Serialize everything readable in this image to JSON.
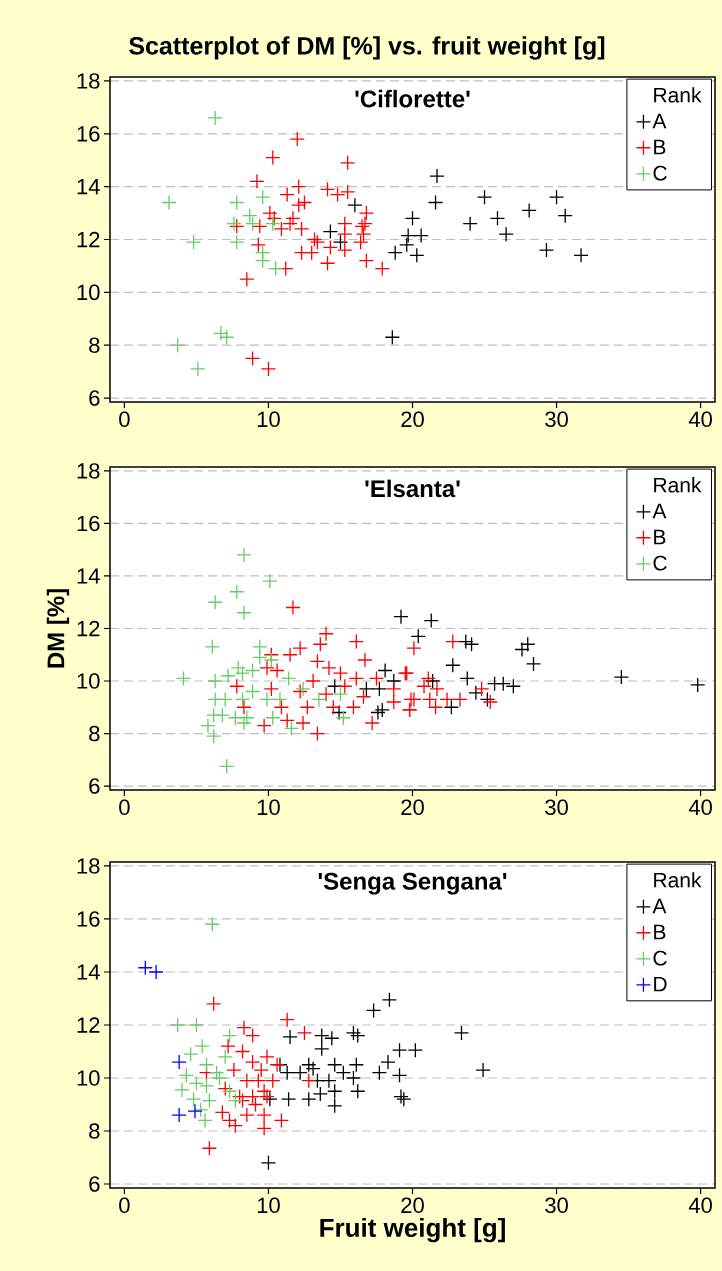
{
  "chart_data": [
    {
      "type": "scatter",
      "title": "Scatterplot of DM [%] vs. fruit weight [g]",
      "subtitle": "'Ciflorette'",
      "legend_title": "Rank",
      "xlim": [
        -1,
        41
      ],
      "xticks": [
        0,
        10,
        20,
        30,
        40
      ],
      "ylim": [
        5.85,
        18.15
      ],
      "yticks": [
        6,
        8,
        10,
        12,
        14,
        16,
        18
      ],
      "grid": "y",
      "legend": "top right",
      "marker": "cross",
      "series": [
        {
          "name": "A",
          "color": "#000000",
          "x": [
            21.7,
            21.6,
            20.0,
            19.7,
            20.6,
            19.6,
            20.3,
            24.0,
            25.0,
            25.9,
            26.5,
            28.1,
            30.0,
            30.6,
            29.3,
            31.7,
            16.0,
            14.3,
            15.0,
            18.8,
            18.6
          ],
          "values": [
            14.4,
            13.4,
            12.8,
            12.15,
            12.15,
            11.8,
            11.4,
            12.6,
            13.6,
            12.8,
            12.2,
            13.1,
            13.6,
            12.9,
            11.6,
            11.4,
            13.3,
            12.3,
            11.9,
            11.5,
            8.3
          ]
        },
        {
          "name": "B",
          "color": "#ff0000",
          "x": [
            12.0,
            10.3,
            15.5,
            9.2,
            12.1,
            14.1,
            14.8,
            15.5,
            11.3,
            12.5,
            12.1,
            10.1,
            10.4,
            11.7,
            11.5,
            16.8,
            16.7,
            16.5,
            15.3,
            16.6,
            7.8,
            9.4,
            10.9,
            12.3,
            15.3,
            13.2,
            13.4,
            16.4,
            14.3,
            15.3,
            12.3,
            13.0,
            9.3,
            14.1,
            16.8,
            17.9,
            11.2,
            8.5,
            8.9,
            10.0
          ],
          "values": [
            15.8,
            15.1,
            14.9,
            14.2,
            14.0,
            13.9,
            13.7,
            13.8,
            13.7,
            13.4,
            13.3,
            13.0,
            12.8,
            12.8,
            12.6,
            13.0,
            12.6,
            12.5,
            12.6,
            12.2,
            12.5,
            12.5,
            12.4,
            12.4,
            12.2,
            12.0,
            11.9,
            11.9,
            11.7,
            11.6,
            11.5,
            11.5,
            11.8,
            11.1,
            11.2,
            10.9,
            10.9,
            10.5,
            7.5,
            7.1
          ]
        },
        {
          "name": "C",
          "color": "#66cc66",
          "x": [
            6.3,
            3.1,
            7.8,
            9.6,
            8.7,
            8.9,
            7.6,
            10.3,
            4.8,
            7.8,
            9.6,
            9.6,
            10.5,
            6.7,
            7.1,
            3.7,
            5.1
          ],
          "values": [
            16.6,
            13.4,
            13.4,
            13.6,
            12.9,
            12.6,
            12.6,
            12.6,
            11.9,
            11.9,
            11.5,
            11.2,
            10.9,
            8.45,
            8.3,
            8.0,
            7.1
          ]
        }
      ]
    },
    {
      "type": "scatter",
      "subtitle": "'Elsanta'",
      "ylabel": "DM [%]",
      "legend_title": "Rank",
      "xlim": [
        -1,
        41
      ],
      "xticks": [
        0,
        10,
        20,
        30,
        40
      ],
      "ylim": [
        5.85,
        18.15
      ],
      "yticks": [
        6,
        8,
        10,
        12,
        14,
        16,
        18
      ],
      "grid": "y",
      "legend": "top right",
      "marker": "cross",
      "series": [
        {
          "name": "A",
          "color": "#000000",
          "x": [
            19.2,
            20.4,
            18.1,
            14.6,
            16.8,
            17.7,
            18.7,
            17.6,
            17.9,
            14.9,
            21.3,
            23.7,
            24.1,
            22.8,
            23.8,
            25.7,
            26.3,
            27.0,
            24.4,
            25.2,
            22.7,
            27.6,
            28.0,
            28.4,
            34.5,
            39.8,
            21.4
          ],
          "values": [
            12.45,
            11.7,
            10.4,
            9.8,
            9.7,
            9.7,
            10.0,
            8.8,
            8.9,
            8.8,
            12.3,
            11.5,
            11.4,
            10.6,
            10.1,
            9.9,
            9.9,
            9.8,
            9.55,
            9.3,
            9.0,
            11.2,
            11.4,
            10.65,
            10.15,
            9.85,
            10.0
          ]
        },
        {
          "name": "B",
          "color": "#ff0000",
          "x": [
            11.7,
            14.0,
            12.2,
            13.6,
            16.1,
            16.7,
            10.2,
            11.5,
            13.4,
            9.9,
            10.6,
            14.2,
            15.0,
            16.1,
            17.5,
            19.6,
            20.1,
            7.8,
            10.2,
            12.2,
            13.1,
            14.0,
            15.3,
            16.6,
            18.7,
            20.1,
            12.7,
            14.5,
            15.9,
            18.7,
            19.8,
            10.9,
            9.7,
            11.3,
            12.4,
            13.4,
            17.2,
            8.3,
            22.8,
            19.5,
            21.1,
            20.8,
            21.7,
            19.9,
            21.2,
            22.4,
            23.3,
            21.6,
            19.8,
            24.8,
            25.4
          ],
          "values": [
            12.8,
            11.8,
            11.25,
            11.4,
            11.5,
            10.8,
            11.0,
            11.0,
            10.75,
            10.5,
            10.4,
            10.5,
            10.3,
            10.1,
            10.1,
            10.3,
            11.25,
            9.8,
            9.7,
            9.6,
            10.0,
            9.5,
            9.8,
            9.4,
            9.7,
            9.3,
            9.0,
            9.0,
            9.0,
            9.2,
            8.9,
            9.0,
            8.3,
            8.5,
            8.4,
            8.0,
            8.4,
            9.0,
            11.5,
            10.3,
            10.1,
            9.8,
            9.7,
            9.3,
            9.3,
            9.3,
            9.3,
            9.0,
            8.9,
            9.7,
            9.2
          ]
        },
        {
          "name": "C",
          "color": "#66cc66",
          "x": [
            8.3,
            10.1,
            7.8,
            6.3,
            8.3,
            6.1,
            9.4,
            9.4,
            10.2,
            4.1,
            6.3,
            7.9,
            8.9,
            7.2,
            8.2,
            11.4,
            12.4,
            6.3,
            7.0,
            8.2,
            8.9,
            9.9,
            10.8,
            13.5,
            6.2,
            6.8,
            7.7,
            8.5,
            8.3,
            5.8,
            10.3,
            11.6,
            15.2,
            6.2,
            7.1,
            15.0
          ],
          "values": [
            14.8,
            13.8,
            13.4,
            13.0,
            12.6,
            11.3,
            11.3,
            10.9,
            10.8,
            10.1,
            10.0,
            10.5,
            10.4,
            10.2,
            10.3,
            10.1,
            9.7,
            9.3,
            9.3,
            9.3,
            9.6,
            9.3,
            9.3,
            9.3,
            8.7,
            8.7,
            8.6,
            8.6,
            8.4,
            8.3,
            8.6,
            8.2,
            8.6,
            7.9,
            6.75,
            9.5
          ]
        }
      ]
    },
    {
      "type": "scatter",
      "subtitle": "'Senga Sengana'",
      "xlabel": "Fruit weight [g]",
      "legend_title": "Rank",
      "xlim": [
        -1,
        41
      ],
      "xticks": [
        0,
        10,
        20,
        30,
        40
      ],
      "ylim": [
        5.85,
        18.15
      ],
      "yticks": [
        6,
        8,
        10,
        12,
        14,
        16,
        18
      ],
      "grid": "y",
      "legend": "top right",
      "marker": "cross",
      "series": [
        {
          "name": "A",
          "color": "#000000",
          "x": [
            18.4,
            17.3,
            11.5,
            13.7,
            14.4,
            13.7,
            15.9,
            16.2,
            19.1,
            20.2,
            18.3,
            10.8,
            12.8,
            14.6,
            16.1,
            11.3,
            12.2,
            13.1,
            15.2,
            17.7,
            19.1,
            13.4,
            14.2,
            15.9,
            10.1,
            11.4,
            12.8,
            13.6,
            14.6,
            16.2,
            14.6,
            19.2,
            19.4,
            10.0,
            23.4,
            24.9
          ],
          "values": [
            12.95,
            12.55,
            11.55,
            11.6,
            11.5,
            11.1,
            11.7,
            11.6,
            11.05,
            11.05,
            10.6,
            10.5,
            10.5,
            10.5,
            10.5,
            10.2,
            10.2,
            10.35,
            10.2,
            10.2,
            10.1,
            9.9,
            9.9,
            10.0,
            9.2,
            9.2,
            9.2,
            9.4,
            9.5,
            9.5,
            8.95,
            9.3,
            9.2,
            6.8,
            11.7,
            10.3
          ]
        },
        {
          "name": "B",
          "color": "#ff0000",
          "x": [
            6.2,
            11.3,
            12.5,
            8.3,
            8.9,
            7.2,
            8.2,
            9.9,
            8.9,
            7.6,
            9.5,
            10.6,
            5.7,
            8.5,
            9.3,
            10.3,
            12.8,
            7.0,
            8.0,
            8.9,
            9.7,
            8.2,
            9.1,
            9.9,
            8.5,
            9.7,
            6.8,
            7.3,
            7.7,
            9.7,
            10.9,
            5.9
          ],
          "values": [
            12.8,
            12.2,
            11.7,
            11.9,
            11.6,
            11.2,
            11.0,
            10.8,
            10.6,
            10.3,
            10.3,
            10.5,
            10.2,
            9.9,
            9.9,
            9.9,
            9.9,
            9.6,
            9.3,
            9.3,
            9.5,
            9.15,
            9.0,
            9.3,
            8.6,
            8.6,
            8.7,
            8.4,
            8.2,
            8.1,
            8.4,
            7.35
          ]
        },
        {
          "name": "C",
          "color": "#66cc66",
          "x": [
            6.1,
            3.7,
            5.0,
            7.3,
            5.4,
            4.6,
            7.0,
            5.7,
            4.3,
            6.4,
            4.0,
            5.0,
            5.7,
            6.6,
            4.8,
            5.9,
            7.3,
            7.7,
            5.6,
            5.3
          ],
          "values": [
            15.8,
            12.0,
            12.0,
            11.6,
            11.2,
            10.9,
            10.8,
            10.5,
            10.1,
            10.2,
            9.55,
            9.8,
            9.7,
            10.0,
            9.2,
            9.15,
            9.5,
            9.15,
            8.4,
            8.8
          ]
        },
        {
          "name": "D",
          "color": "#0000ff",
          "x": [
            1.45,
            2.2,
            3.8,
            3.8,
            4.9
          ],
          "values": [
            14.16,
            14.0,
            10.6,
            8.6,
            8.75
          ]
        }
      ]
    }
  ]
}
